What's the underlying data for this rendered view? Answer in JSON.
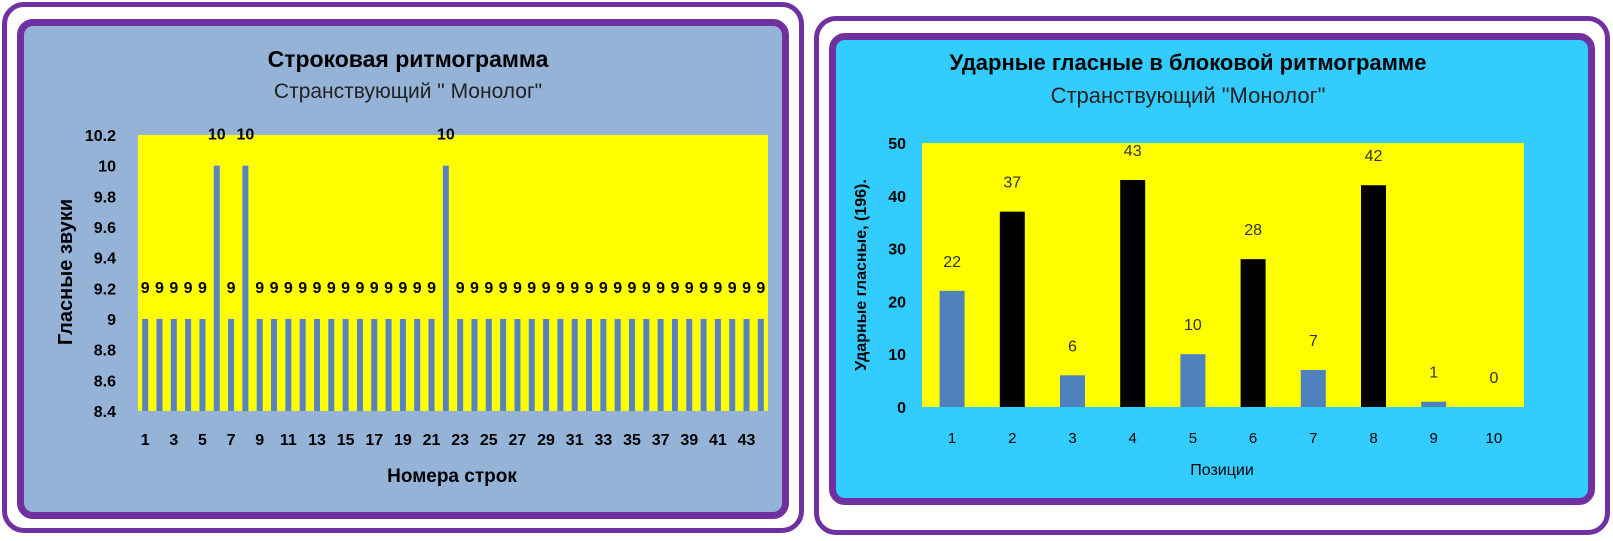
{
  "chart_data": [
    {
      "type": "bar",
      "title": "Строковая ритмограмма",
      "subtitle": "Странствующий \" Монолог\"",
      "xlabel": "Номера строк",
      "ylabel": "Гласные звуки",
      "ylim": [
        8.4,
        10.2
      ],
      "yticks": [
        "8.4",
        "8.6",
        "8.8",
        "9",
        "9.2",
        "9.4",
        "9.6",
        "9.8",
        "10",
        "10.2"
      ],
      "xtick_labels": [
        "1",
        "3",
        "5",
        "7",
        "9",
        "11",
        "13",
        "15",
        "17",
        "19",
        "21",
        "23",
        "25",
        "27",
        "29",
        "31",
        "33",
        "35",
        "37",
        "39",
        "41",
        "43"
      ],
      "categories": [
        1,
        2,
        3,
        4,
        5,
        6,
        7,
        8,
        9,
        10,
        11,
        12,
        13,
        14,
        15,
        16,
        17,
        18,
        19,
        20,
        21,
        22,
        23,
        24,
        25,
        26,
        27,
        28,
        29,
        30,
        31,
        32,
        33,
        34,
        35,
        36,
        37,
        38,
        39,
        40,
        41,
        42,
        43,
        44
      ],
      "values": [
        9,
        9,
        9,
        9,
        9,
        10,
        9,
        10,
        9,
        9,
        9,
        9,
        9,
        9,
        9,
        9,
        9,
        9,
        9,
        9,
        9,
        10,
        9,
        9,
        9,
        9,
        9,
        9,
        9,
        9,
        9,
        9,
        9,
        9,
        9,
        9,
        9,
        9,
        9,
        9,
        9,
        9,
        9,
        9
      ],
      "data_labels": true,
      "grid": false,
      "bar_color": "#5b82c0",
      "plot_bg": "#ffff00",
      "panel_bg": "#95b3d7",
      "frame_color": "#7030a0"
    },
    {
      "type": "bar",
      "title": "Ударные гласные в блоковой ритмограмме",
      "subtitle": "Странствующий \"Монолог\"",
      "xlabel": "Позиции",
      "ylabel": "Ударные гласные, (196).",
      "ylim": [
        0,
        50
      ],
      "yticks": [
        "0",
        "10",
        "20",
        "30",
        "40",
        "50"
      ],
      "categories": [
        "1",
        "2",
        "3",
        "4",
        "5",
        "6",
        "7",
        "8",
        "9",
        "10"
      ],
      "values": [
        22,
        37,
        6,
        43,
        10,
        28,
        7,
        42,
        1,
        0
      ],
      "bar_colors": [
        "#4f81bd",
        "#000000",
        "#4f81bd",
        "#000000",
        "#4f81bd",
        "#000000",
        "#4f81bd",
        "#000000",
        "#4f81bd",
        "#000000"
      ],
      "data_labels": true,
      "grid": false,
      "plot_bg": "#ffff00",
      "panel_bg": "#33ccff",
      "frame_color": "#7030a0"
    }
  ]
}
